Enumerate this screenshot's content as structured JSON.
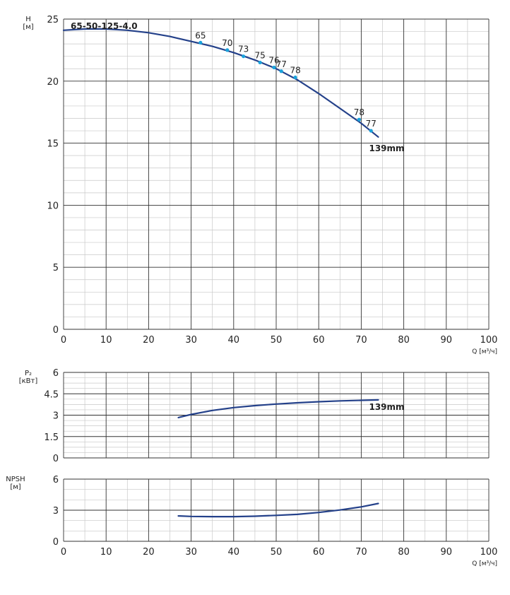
{
  "model": "65-50-125-4.0",
  "colors": {
    "curve": "#24418a",
    "marker": "#1aa3dc",
    "grid_major": "#333333",
    "grid_minor": "#c8c8c8"
  },
  "chart_data": [
    {
      "id": "head",
      "type": "line",
      "title": "65-50-125-4.0",
      "ylabel_lines": [
        "H",
        "[м]"
      ],
      "xlabel": "Q [м³/ч]",
      "xlim": [
        0,
        100
      ],
      "ylim": [
        0,
        25
      ],
      "xticks": [
        "0",
        "10",
        "20",
        "30",
        "40",
        "50",
        "60",
        "70",
        "80",
        "90",
        "100"
      ],
      "yticks": [
        "0",
        "5",
        "10",
        "15",
        "20",
        "25"
      ],
      "series": [
        {
          "name": "139mm",
          "x": [
            0,
            5,
            10,
            15,
            20,
            25,
            30,
            35,
            40,
            45,
            50,
            55,
            60,
            65,
            70,
            74
          ],
          "y": [
            24.1,
            24.2,
            24.2,
            24.1,
            23.9,
            23.6,
            23.2,
            22.8,
            22.3,
            21.7,
            21.0,
            20.1,
            19.0,
            17.8,
            16.6,
            15.5
          ]
        }
      ],
      "efficiency_points": [
        {
          "q": 32.2,
          "h": 23.1,
          "label": "65"
        },
        {
          "q": 38.5,
          "h": 22.5,
          "label": "70"
        },
        {
          "q": 42.3,
          "h": 22.0,
          "label": "73"
        },
        {
          "q": 46.2,
          "h": 21.5,
          "label": "75"
        },
        {
          "q": 49.5,
          "h": 21.1,
          "label": "76"
        },
        {
          "q": 51.2,
          "h": 20.8,
          "label": "77"
        },
        {
          "q": 54.5,
          "h": 20.3,
          "label": "78"
        },
        {
          "q": 69.5,
          "h": 16.9,
          "label": "78"
        },
        {
          "q": 72.3,
          "h": 16.0,
          "label": "77"
        }
      ]
    },
    {
      "id": "power",
      "type": "line",
      "ylabel_lines": [
        "P₂",
        "[кВт]"
      ],
      "xlim": [
        0,
        100
      ],
      "ylim": [
        0,
        6
      ],
      "yticks": [
        "0",
        "1.5",
        "3",
        "4.5",
        "6"
      ],
      "series": [
        {
          "name": "139mm",
          "x": [
            27,
            30,
            35,
            40,
            45,
            50,
            55,
            60,
            65,
            70,
            74
          ],
          "y": [
            2.83,
            3.05,
            3.33,
            3.53,
            3.67,
            3.78,
            3.87,
            3.94,
            4.0,
            4.04,
            4.07
          ]
        }
      ]
    },
    {
      "id": "npsh",
      "type": "line",
      "ylabel_lines": [
        "NPSH",
        "[м]"
      ],
      "xlabel": "Q [м³/ч]",
      "xlim": [
        0,
        100
      ],
      "ylim": [
        0,
        6
      ],
      "xticks": [
        "0",
        "10",
        "20",
        "30",
        "40",
        "50",
        "60",
        "70",
        "80",
        "90",
        "100"
      ],
      "yticks": [
        "0",
        "3",
        "6"
      ],
      "series": [
        {
          "name": "",
          "x": [
            27,
            30,
            35,
            40,
            45,
            50,
            55,
            60,
            65,
            70,
            74
          ],
          "y": [
            2.45,
            2.4,
            2.38,
            2.38,
            2.42,
            2.5,
            2.6,
            2.78,
            3.02,
            3.32,
            3.65
          ]
        }
      ]
    }
  ]
}
